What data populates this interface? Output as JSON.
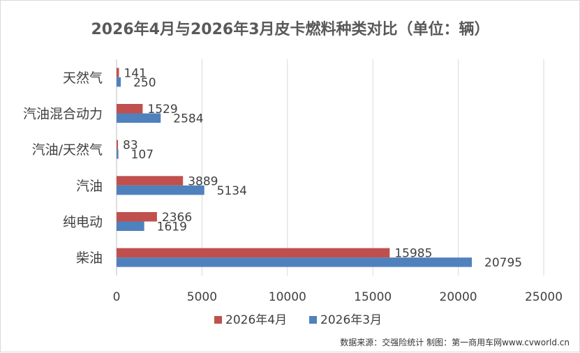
{
  "chart_data": {
    "type": "bar",
    "orientation": "horizontal",
    "title": "2026年4月与2026年3月皮卡燃料种类对比（单位：辆）",
    "categories": [
      "天然气",
      "汽油混合动力",
      "汽油/天然气",
      "汽油",
      "纯电动",
      "柴油"
    ],
    "series": [
      {
        "name": "2026年4月",
        "color": "#c0504d",
        "values": [
          141,
          1529,
          83,
          3889,
          2366,
          15985
        ]
      },
      {
        "name": "2026年3月",
        "color": "#4f81bd",
        "values": [
          250,
          2584,
          107,
          5134,
          1619,
          20795
        ]
      }
    ],
    "xlim": [
      0,
      25000
    ],
    "xticks": [
      0,
      5000,
      10000,
      15000,
      20000,
      25000
    ],
    "xlabel": "",
    "ylabel": "",
    "grid": true,
    "legend_position": "bottom",
    "source_note": "数据来源：交强险统计 制图：第一商用车网www.cvworld.cn"
  }
}
